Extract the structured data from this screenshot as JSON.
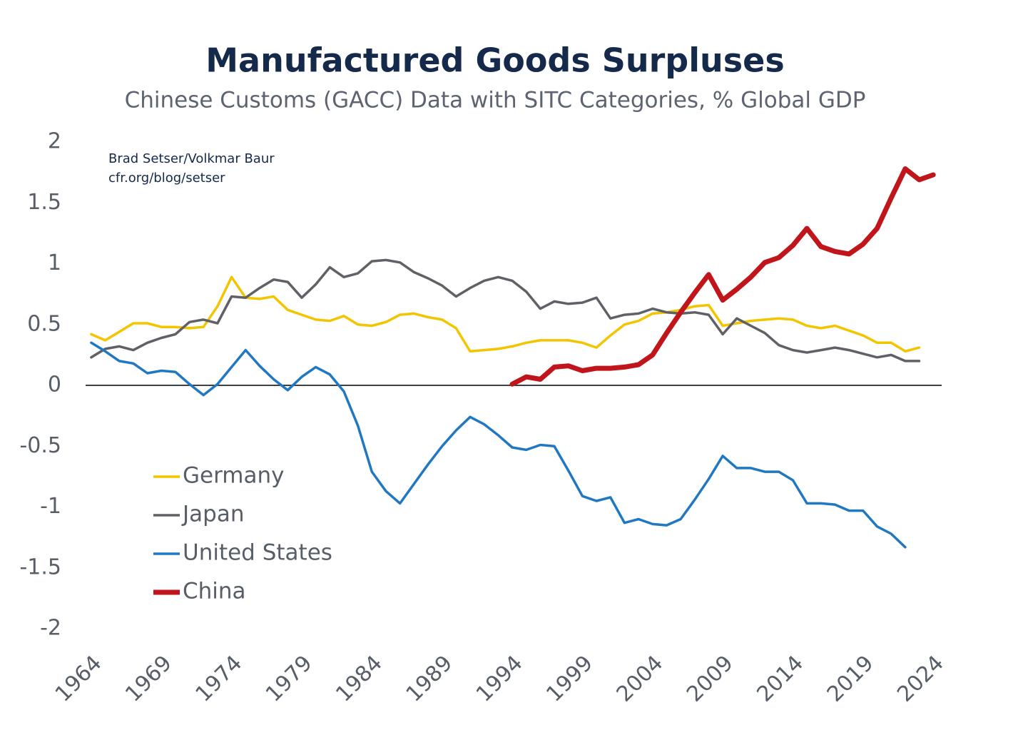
{
  "chart_data": {
    "type": "line",
    "title": "Manufactured Goods Surpluses",
    "subtitle": "Chinese Customs (GACC) Data with SITC Categories, % Global GDP",
    "annotations": [
      "Brad Setser/Volkmar Baur",
      "cfr.org/blog/setser"
    ],
    "x": [
      1964,
      1965,
      1966,
      1967,
      1968,
      1969,
      1970,
      1971,
      1972,
      1973,
      1974,
      1975,
      1976,
      1977,
      1978,
      1979,
      1980,
      1981,
      1982,
      1983,
      1984,
      1985,
      1986,
      1987,
      1988,
      1989,
      1990,
      1991,
      1992,
      1993,
      1994,
      1995,
      1996,
      1997,
      1998,
      1999,
      2000,
      2001,
      2002,
      2003,
      2004,
      2005,
      2006,
      2007,
      2008,
      2009,
      2010,
      2011,
      2012,
      2013,
      2014,
      2015,
      2016,
      2017,
      2018,
      2019,
      2020,
      2021,
      2022,
      2023,
      2024
    ],
    "series": [
      {
        "name": "Germany",
        "color": "#f2c500",
        "values": [
          0.42,
          0.37,
          0.44,
          0.51,
          0.51,
          0.48,
          0.48,
          0.47,
          0.48,
          0.65,
          0.89,
          0.72,
          0.71,
          0.73,
          0.62,
          0.58,
          0.54,
          0.53,
          0.57,
          0.5,
          0.49,
          0.52,
          0.58,
          0.59,
          0.56,
          0.54,
          0.47,
          0.28,
          0.29,
          0.3,
          0.32,
          0.35,
          0.37,
          0.37,
          0.37,
          0.35,
          0.31,
          0.41,
          0.5,
          0.53,
          0.59,
          0.6,
          0.62,
          0.65,
          0.66,
          0.49,
          0.51,
          0.53,
          0.54,
          0.55,
          0.54,
          0.49,
          0.47,
          0.49,
          0.45,
          0.41,
          0.35,
          0.35,
          0.28,
          0.31,
          null
        ]
      },
      {
        "name": "Japan",
        "color": "#5f6166",
        "values": [
          0.23,
          0.3,
          0.32,
          0.29,
          0.35,
          0.39,
          0.42,
          0.52,
          0.54,
          0.51,
          0.73,
          0.72,
          0.8,
          0.87,
          0.85,
          0.72,
          0.83,
          0.97,
          0.89,
          0.92,
          1.02,
          1.03,
          1.01,
          0.93,
          0.88,
          0.82,
          0.73,
          0.8,
          0.86,
          0.89,
          0.86,
          0.77,
          0.63,
          0.69,
          0.67,
          0.68,
          0.72,
          0.55,
          0.58,
          0.59,
          0.63,
          0.6,
          0.59,
          0.6,
          0.58,
          0.42,
          0.55,
          0.49,
          0.43,
          0.33,
          0.29,
          0.27,
          0.29,
          0.31,
          0.29,
          0.26,
          0.23,
          0.25,
          0.2,
          0.2,
          null
        ]
      },
      {
        "name": "United States",
        "color": "#1f78c1",
        "values": [
          0.35,
          0.28,
          0.2,
          0.18,
          0.1,
          0.12,
          0.11,
          0.01,
          -0.08,
          0.01,
          0.15,
          0.29,
          0.16,
          0.05,
          -0.04,
          0.07,
          0.15,
          0.09,
          -0.05,
          -0.33,
          -0.71,
          -0.87,
          -0.97,
          -0.81,
          -0.65,
          -0.5,
          -0.37,
          -0.26,
          -0.32,
          -0.41,
          -0.51,
          -0.53,
          -0.49,
          -0.5,
          -0.7,
          -0.91,
          -0.95,
          -0.92,
          -1.13,
          -1.1,
          -1.14,
          -1.15,
          -1.1,
          -0.94,
          -0.77,
          -0.58,
          -0.68,
          -0.68,
          -0.71,
          -0.71,
          -0.78,
          -0.97,
          -0.97,
          -0.98,
          -1.03,
          -1.03,
          -1.16,
          -1.22,
          -1.33,
          null,
          null
        ]
      },
      {
        "name": "China",
        "color": "#c0161b",
        "values": [
          null,
          null,
          null,
          null,
          null,
          null,
          null,
          null,
          null,
          null,
          null,
          null,
          null,
          null,
          null,
          null,
          null,
          null,
          null,
          null,
          null,
          null,
          null,
          null,
          null,
          null,
          null,
          null,
          null,
          null,
          0.01,
          0.07,
          0.05,
          0.15,
          0.16,
          0.12,
          0.14,
          0.14,
          0.15,
          0.17,
          0.25,
          0.43,
          0.6,
          0.76,
          0.91,
          0.7,
          0.79,
          0.89,
          1.01,
          1.05,
          1.15,
          1.29,
          1.14,
          1.1,
          1.08,
          1.16,
          1.29,
          1.54,
          1.78,
          1.69,
          1.73
        ]
      }
    ],
    "xlim": [
      1963.6,
      2024.6
    ],
    "xticks": [
      1964,
      1969,
      1974,
      1979,
      1984,
      1989,
      1994,
      1999,
      2004,
      2009,
      2014,
      2019,
      2024
    ],
    "ylim": [
      -2,
      2
    ],
    "yticks": [
      -2,
      -1.5,
      -1,
      -0.5,
      0,
      0.5,
      1,
      1.5,
      2
    ],
    "grid": false,
    "legend": "lower-left"
  }
}
